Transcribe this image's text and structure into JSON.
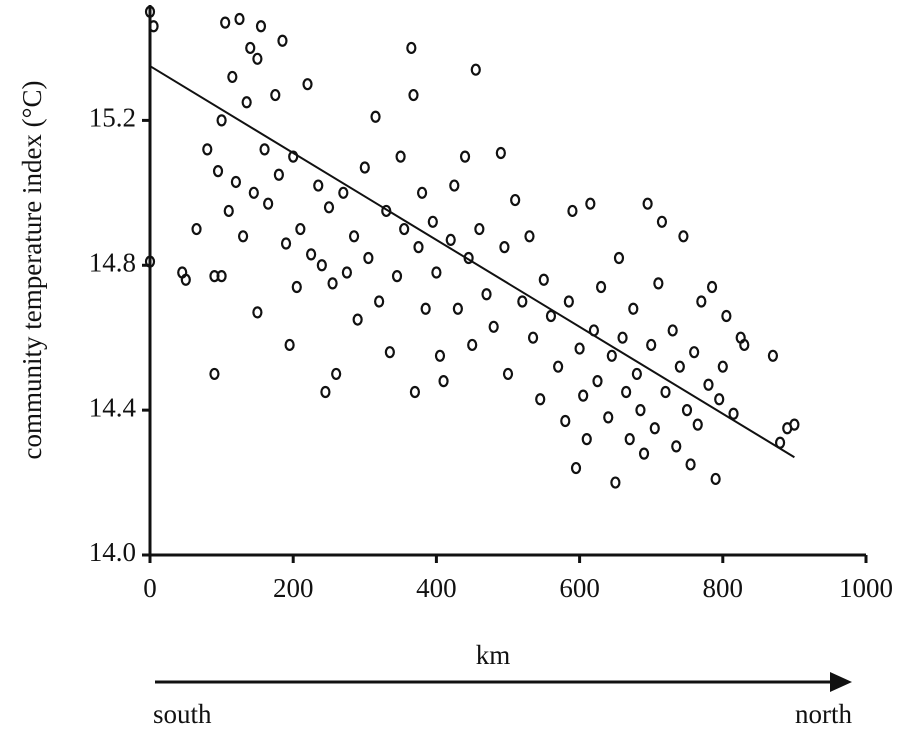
{
  "chart_data": {
    "type": "scatter",
    "ylabel": "community temperature index (°C)",
    "xlabel": "km",
    "direction_start": "south",
    "direction_end": "north",
    "xlim": [
      0,
      1000
    ],
    "xticks": [
      0,
      200,
      400,
      600,
      800,
      1000
    ],
    "ylim": [
      14.0,
      15.52
    ],
    "yticks": [
      {
        "value": 14.0,
        "label": "14.0"
      },
      {
        "value": 14.4,
        "label": "14.4"
      },
      {
        "value": 14.8,
        "label": "14.8"
      },
      {
        "value": 15.2,
        "label": "15.2"
      }
    ],
    "color": "#111111",
    "trend_line": {
      "x": [
        0,
        900
      ],
      "y": [
        15.35,
        14.27
      ]
    },
    "x": [
      0,
      5,
      0,
      45,
      50,
      65,
      80,
      90,
      90,
      95,
      100,
      100,
      105,
      110,
      115,
      120,
      125,
      130,
      135,
      140,
      145,
      150,
      150,
      155,
      160,
      165,
      175,
      180,
      185,
      190,
      195,
      200,
      205,
      210,
      220,
      225,
      235,
      240,
      245,
      250,
      255,
      260,
      270,
      275,
      285,
      290,
      300,
      305,
      315,
      320,
      330,
      335,
      345,
      350,
      355,
      365,
      368,
      370,
      375,
      380,
      385,
      395,
      400,
      405,
      410,
      420,
      425,
      430,
      440,
      445,
      450,
      455,
      460,
      470,
      480,
      490,
      495,
      500,
      510,
      520,
      530,
      535,
      545,
      550,
      560,
      570,
      580,
      585,
      590,
      595,
      600,
      605,
      610,
      615,
      620,
      625,
      630,
      640,
      645,
      650,
      655,
      660,
      665,
      670,
      675,
      680,
      685,
      690,
      695,
      700,
      705,
      710,
      715,
      720,
      730,
      735,
      740,
      745,
      750,
      755,
      760,
      765,
      770,
      780,
      785,
      790,
      795,
      800,
      805,
      815,
      825,
      830,
      870,
      880,
      890,
      900
    ],
    "y": [
      15.5,
      15.46,
      14.81,
      14.78,
      14.76,
      14.9,
      15.12,
      14.5,
      14.77,
      15.06,
      15.2,
      14.77,
      15.47,
      14.95,
      15.32,
      15.03,
      15.48,
      14.88,
      15.25,
      15.4,
      15.0,
      15.37,
      14.67,
      15.46,
      15.12,
      14.97,
      15.27,
      15.05,
      15.42,
      14.86,
      14.58,
      15.1,
      14.74,
      14.9,
      15.3,
      14.83,
      15.02,
      14.8,
      14.45,
      14.96,
      14.75,
      14.5,
      15.0,
      14.78,
      14.88,
      14.65,
      15.07,
      14.82,
      15.21,
      14.7,
      14.95,
      14.56,
      14.77,
      15.1,
      14.9,
      15.4,
      15.27,
      14.45,
      14.85,
      15.0,
      14.68,
      14.92,
      14.78,
      14.55,
      14.48,
      14.87,
      15.02,
      14.68,
      15.1,
      14.82,
      14.58,
      15.34,
      14.9,
      14.72,
      14.63,
      15.11,
      14.85,
      14.5,
      14.98,
      14.7,
      14.88,
      14.6,
      14.43,
      14.76,
      14.66,
      14.52,
      14.37,
      14.7,
      14.95,
      14.24,
      14.57,
      14.44,
      14.32,
      14.97,
      14.62,
      14.48,
      14.74,
      14.38,
      14.55,
      14.2,
      14.82,
      14.6,
      14.45,
      14.32,
      14.68,
      14.5,
      14.4,
      14.28,
      14.97,
      14.58,
      14.35,
      14.75,
      14.92,
      14.45,
      14.62,
      14.3,
      14.52,
      14.88,
      14.4,
      14.25,
      14.56,
      14.36,
      14.7,
      14.47,
      14.74,
      14.21,
      14.43,
      14.52,
      14.66,
      14.39,
      14.6,
      14.58,
      14.55,
      14.31,
      14.35,
      14.36
    ]
  }
}
